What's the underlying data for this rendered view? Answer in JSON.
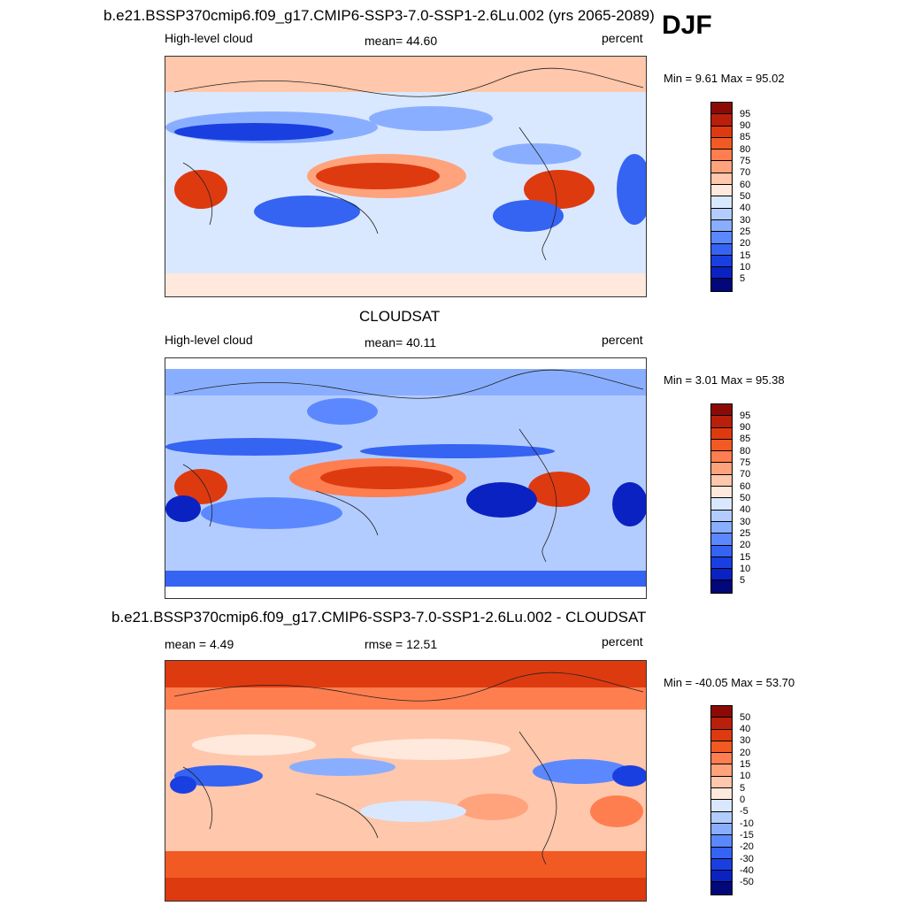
{
  "season": "DJF",
  "panels": [
    {
      "title": "b.e21.BSSP370cmip6.f09_g17.CMIP6-SSP3-7.0-SSP1-2.6Lu.002 (yrs 2065-2089)",
      "left_label": "High-level cloud",
      "center_label": "mean=  44.60",
      "right_label": "percent",
      "minmax": "Min =   9.61 Max =  95.02",
      "colorbar_labels": [
        "95",
        "90",
        "85",
        "80",
        "75",
        "70",
        "60",
        "50",
        "40",
        "30",
        "25",
        "20",
        "15",
        "10",
        "5"
      ],
      "colors": {
        "hot": "#c0280e",
        "warm": "#ff7b52",
        "mild": "#ffd2bb",
        "neutral": "#d6e6ff",
        "cool": "#8fb3ff",
        "cold": "#1e4fe0",
        "deep": "#0a1fb8"
      }
    },
    {
      "title": "CLOUDSAT",
      "left_label": "High-level cloud",
      "center_label": "mean=  40.11",
      "right_label": "percent",
      "minmax": "Min =   3.01 Max =  95.38",
      "colorbar_labels": [
        "95",
        "90",
        "85",
        "80",
        "75",
        "70",
        "60",
        "50",
        "40",
        "30",
        "25",
        "20",
        "15",
        "10",
        "5"
      ]
    },
    {
      "title": "b.e21.BSSP370cmip6.f09_g17.CMIP6-SSP3-7.0-SSP1-2.6Lu.002 - CLOUDSAT",
      "left_label": "mean =   4.49",
      "center_label": "rmse =  12.51",
      "right_label": "percent",
      "minmax": "Min = -40.05 Max =  53.70",
      "colorbar_labels": [
        "50",
        "40",
        "30",
        "20",
        "15",
        "10",
        "5",
        "0",
        "-5",
        "-10",
        "-15",
        "-20",
        "-30",
        "-40",
        "-50"
      ]
    }
  ],
  "colorbar_colors": [
    "#8c0a06",
    "#b8200c",
    "#de3a10",
    "#f25a24",
    "#ff7e50",
    "#ffa37c",
    "#ffc7ab",
    "#ffe9dc",
    "#d9e8ff",
    "#b3ccff",
    "#8aaeff",
    "#5c88ff",
    "#3563f2",
    "#1a3fe0",
    "#0a22c2",
    "#02077a"
  ]
}
